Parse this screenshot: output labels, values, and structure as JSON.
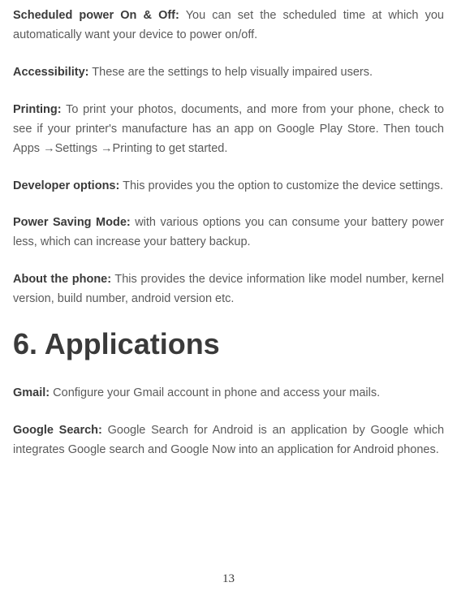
{
  "paragraphs": {
    "p1": {
      "bold": "Scheduled power On & Off:",
      "text": " You can set the scheduled time at which you automatically want your device to power on/off."
    },
    "p2": {
      "bold": "Accessibility:",
      "text": " These are the settings to help visually impaired users."
    },
    "p3": {
      "bold": "Printing:",
      "text1": " To print your photos, documents, and more from your phone, check to see if your printer's manufacture has an app on Google Play Store. Then touch Apps ",
      "arrow1": "→",
      "text2": "Settings ",
      "arrow2": "→",
      "text3": "Printing to get started."
    },
    "p4": {
      "bold": "Developer options:",
      "text": " This provides you the option to customize the device settings."
    },
    "p5": {
      "bold": "Power Saving Mode:",
      "text": " with various options you can consume your battery power less, which can increase your battery backup."
    },
    "p6": {
      "bold": "About the phone:",
      "text": " This provides the device information like model number, kernel version, build number, android version etc."
    },
    "p7": {
      "bold": "Gmail:",
      "text": " Configure your Gmail account in phone and access your mails."
    },
    "p8": {
      "bold": "Google Search:",
      "text": " Google Search for Android is an application by Google which integrates Google search and Google Now into an application for Android phones."
    }
  },
  "heading": "6. Applications",
  "pageNumber": "13",
  "styling": {
    "body_width": 563,
    "body_height": 728,
    "background_color": "#ffffff",
    "text_color": "#5a5a5a",
    "bold_color": "#3a3a3a",
    "heading_color": "#3a3a3a",
    "para_font_size": 14.5,
    "para_line_height": 1.65,
    "heading_font_size": 36,
    "page_number_font_size": 15,
    "text_align": "justify"
  }
}
